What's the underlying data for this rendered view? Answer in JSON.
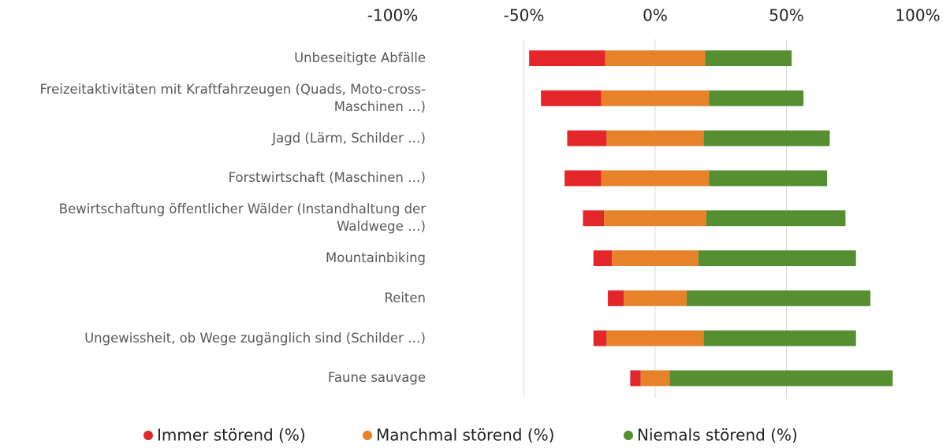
{
  "chart_data": {
    "type": "diverging-bar",
    "categories": [
      "Unbeseitigte Abfälle",
      "Freizeitaktivitäten mit Kraftfahrzeugen (Quads, Moto-cross-Maschinen …)",
      "Jagd (Lärm, Schilder …)",
      "Forstwirtschaft (Maschinen …)",
      "Bewirtschaftung öffentlicher Wälder (Instandhaltung der Waldwege …)",
      "Mountainbiking",
      "Reiten",
      "Ungewissheit, ob Wege zugänglich sind (Schilder …)",
      "Faune sauvage"
    ],
    "series": [
      {
        "name": "Immer störend (%)",
        "color": "#e3262a",
        "values": [
          29,
          23,
          15,
          14,
          8,
          7,
          6,
          5,
          4
        ]
      },
      {
        "name": "Manchmal störend (%)",
        "color": "#e6832a",
        "values": [
          38,
          41,
          37,
          41,
          39,
          33,
          24,
          37,
          11
        ]
      },
      {
        "name": "Niemals störend (%)",
        "color": "#568f32",
        "values": [
          33,
          36,
          48,
          45,
          53,
          60,
          70,
          58,
          85
        ]
      }
    ],
    "xlim": [
      -100,
      100
    ],
    "xticks": [
      {
        "value": -100,
        "label": "-100%"
      },
      {
        "value": -50,
        "label": "-50%"
      },
      {
        "value": 0,
        "label": "0%"
      },
      {
        "value": 50,
        "label": "50%"
      },
      {
        "value": 100,
        "label": "100%"
      }
    ],
    "grid": true
  }
}
